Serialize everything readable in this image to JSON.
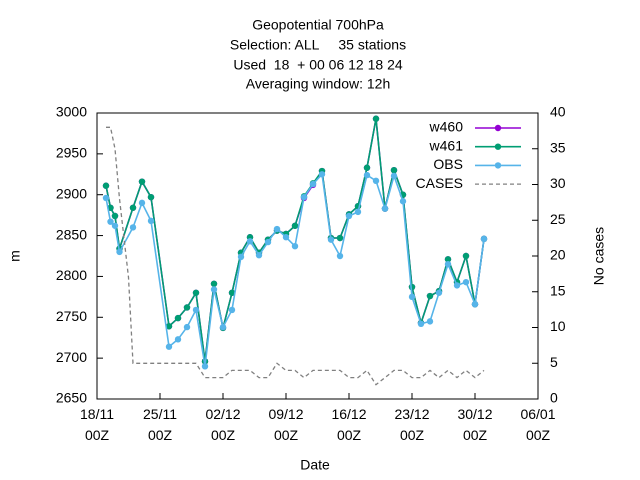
{
  "chart_data": {
    "type": "line",
    "title": "Geopotential 700hPa",
    "subtitle": [
      "Selection: ALL     35 stations",
      "Used  18  + 00 06 12 18 24",
      "Averaging window: 12h"
    ],
    "xlabel": "Date",
    "ylabel": "m",
    "y2label": "No cases",
    "xlim": [
      "18/11 00Z",
      "06/01 00Z"
    ],
    "xticks": [
      "18/11 00Z",
      "25/11 00Z",
      "02/12 00Z",
      "09/12 00Z",
      "16/12 00Z",
      "23/12 00Z",
      "30/12 00Z",
      "06/01 00Z"
    ],
    "ylim": [
      2650,
      3000
    ],
    "yticks": [
      2650,
      2700,
      2750,
      2800,
      2850,
      2900,
      2950,
      3000
    ],
    "y2lim": [
      0,
      40
    ],
    "y2ticks": [
      0,
      5,
      10,
      15,
      20,
      25,
      30,
      35,
      40
    ],
    "legend": "top-right",
    "series": [
      {
        "name": "w460",
        "color": "#9400d3",
        "marker": true,
        "x": [
          "19/11 00Z",
          "19/11 12Z",
          "20/11 00Z",
          "20/11 12Z",
          "22/11 00Z",
          "23/11 00Z",
          "24/11 00Z",
          "26/11 00Z",
          "27/11 00Z",
          "28/11 00Z",
          "29/11 00Z",
          "30/11 00Z",
          "01/12 00Z",
          "02/12 00Z",
          "03/12 00Z",
          "04/12 00Z",
          "05/12 00Z",
          "06/12 00Z",
          "07/12 00Z",
          "08/12 00Z",
          "09/12 00Z",
          "10/12 00Z",
          "11/12 00Z",
          "12/12 00Z",
          "13/12 00Z",
          "14/12 00Z",
          "15/12 00Z",
          "16/12 00Z",
          "17/12 00Z",
          "18/12 00Z",
          "19/12 00Z",
          "20/12 00Z",
          "21/12 00Z",
          "22/12 00Z",
          "23/12 00Z",
          "24/12 00Z",
          "25/12 00Z",
          "26/12 00Z",
          "27/12 00Z",
          "28/12 00Z",
          "29/12 00Z",
          "30/12 00Z",
          "31/12 00Z"
        ],
        "values": [
          2911,
          2884,
          2874,
          2834,
          2884,
          2916,
          2897,
          2739,
          2749,
          2762,
          2780,
          2696,
          2791,
          2737,
          2780,
          2829,
          2848,
          2829,
          2845,
          2856,
          2852,
          2862,
          2896,
          2912,
          2929,
          2847,
          2847,
          2876,
          2886,
          2933,
          2993,
          2883,
          2930,
          2900,
          2787,
          2743,
          2776,
          2782,
          2821,
          2793,
          2825,
          2766,
          2846
        ]
      },
      {
        "name": "w461",
        "color": "#009e73",
        "marker": true,
        "x": [
          "19/11 00Z",
          "19/11 12Z",
          "20/11 00Z",
          "20/11 12Z",
          "22/11 00Z",
          "23/11 00Z",
          "24/11 00Z",
          "26/11 00Z",
          "27/11 00Z",
          "28/11 00Z",
          "29/11 00Z",
          "30/11 00Z",
          "01/12 00Z",
          "02/12 00Z",
          "03/12 00Z",
          "04/12 00Z",
          "05/12 00Z",
          "06/12 00Z",
          "07/12 00Z",
          "08/12 00Z",
          "09/12 00Z",
          "10/12 00Z",
          "11/12 00Z",
          "12/12 00Z",
          "13/12 00Z",
          "14/12 00Z",
          "15/12 00Z",
          "16/12 00Z",
          "17/12 00Z",
          "18/12 00Z",
          "19/12 00Z",
          "20/12 00Z",
          "21/12 00Z",
          "22/12 00Z",
          "23/12 00Z",
          "24/12 00Z",
          "25/12 00Z",
          "26/12 00Z",
          "27/12 00Z",
          "28/12 00Z",
          "29/12 00Z",
          "30/12 00Z",
          "31/12 00Z"
        ],
        "values": [
          2911,
          2884,
          2874,
          2834,
          2884,
          2916,
          2897,
          2739,
          2749,
          2762,
          2780,
          2696,
          2791,
          2737,
          2780,
          2829,
          2848,
          2829,
          2845,
          2856,
          2852,
          2862,
          2898,
          2914,
          2929,
          2847,
          2847,
          2876,
          2886,
          2933,
          2993,
          2883,
          2930,
          2900,
          2787,
          2743,
          2776,
          2782,
          2821,
          2793,
          2825,
          2766,
          2846
        ]
      },
      {
        "name": "OBS",
        "color": "#56b4e9",
        "marker": true,
        "x": [
          "19/11 00Z",
          "19/11 12Z",
          "20/11 00Z",
          "20/11 12Z",
          "22/11 00Z",
          "23/11 00Z",
          "24/11 00Z",
          "26/11 00Z",
          "27/11 00Z",
          "28/11 00Z",
          "29/11 00Z",
          "30/11 00Z",
          "01/12 00Z",
          "02/12 00Z",
          "03/12 00Z",
          "04/12 00Z",
          "05/12 00Z",
          "06/12 00Z",
          "07/12 00Z",
          "08/12 00Z",
          "09/12 00Z",
          "10/12 00Z",
          "11/12 00Z",
          "12/12 00Z",
          "13/12 00Z",
          "14/12 00Z",
          "15/12 00Z",
          "16/12 00Z",
          "17/12 00Z",
          "18/12 00Z",
          "19/12 00Z",
          "20/12 00Z",
          "21/12 00Z",
          "22/12 00Z",
          "23/12 00Z",
          "24/12 00Z",
          "25/12 00Z",
          "26/12 00Z",
          "27/12 00Z",
          "28/12 00Z",
          "29/12 00Z",
          "30/12 00Z",
          "31/12 00Z"
        ],
        "values": [
          2896,
          2867,
          2862,
          2830,
          2860,
          2890,
          2868,
          2714,
          2723,
          2738,
          2759,
          2690,
          2784,
          2738,
          2759,
          2824,
          2843,
          2826,
          2842,
          2858,
          2848,
          2837,
          2897,
          2913,
          2925,
          2845,
          2825,
          2874,
          2879,
          2924,
          2917,
          2883,
          2923,
          2892,
          2775,
          2742,
          2745,
          2780,
          2815,
          2789,
          2793,
          2766,
          2846
        ]
      },
      {
        "name": "CASES",
        "color": "#808080",
        "marker": false,
        "dashed": true,
        "axis": "y2",
        "x": [
          "19/11 00Z",
          "19/11 12Z",
          "20/11 00Z",
          "20/11 12Z",
          "21/11 12Z",
          "22/11 00Z",
          "23/11 00Z",
          "24/11 00Z",
          "25/11 00Z",
          "26/11 00Z",
          "27/11 00Z",
          "28/11 00Z",
          "29/11 00Z",
          "30/11 00Z",
          "01/12 00Z",
          "02/12 00Z",
          "03/12 00Z",
          "04/12 00Z",
          "05/12 00Z",
          "06/12 00Z",
          "07/12 00Z",
          "08/12 00Z",
          "09/12 00Z",
          "10/12 00Z",
          "11/12 00Z",
          "12/12 00Z",
          "13/12 00Z",
          "14/12 00Z",
          "15/12 00Z",
          "16/12 00Z",
          "17/12 00Z",
          "18/12 00Z",
          "19/12 00Z",
          "20/12 00Z",
          "21/12 00Z",
          "22/12 00Z",
          "23/12 00Z",
          "24/12 00Z",
          "25/12 00Z",
          "26/12 00Z",
          "27/12 00Z",
          "28/12 00Z",
          "29/12 00Z",
          "30/12 00Z",
          "31/12 00Z"
        ],
        "values": [
          38,
          38,
          35,
          28,
          17,
          5,
          5,
          5,
          5,
          5,
          5,
          5,
          5,
          3,
          3,
          3,
          4,
          4,
          4,
          3,
          3,
          5,
          4,
          4,
          3,
          4,
          4,
          4,
          4,
          3,
          3,
          4,
          2,
          3,
          4,
          4,
          3,
          3,
          4,
          3,
          4,
          3,
          4,
          3,
          4
        ]
      }
    ]
  }
}
